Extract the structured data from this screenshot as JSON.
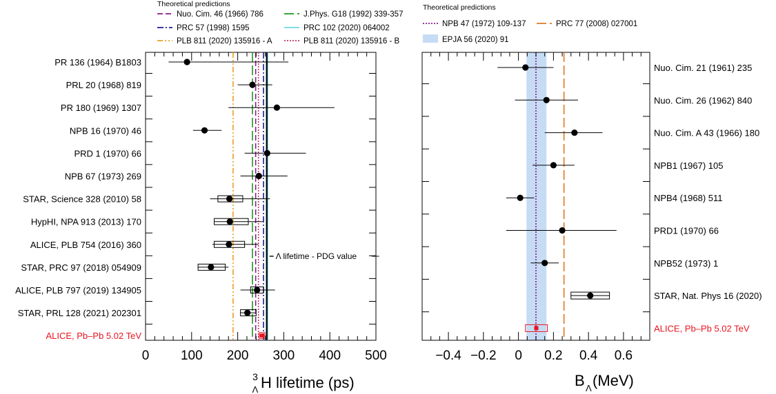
{
  "chart_data": [
    {
      "type": "scatter",
      "xlabel_main": "H lifetime (ps)",
      "xlabel_sup": "3",
      "xlabel_sub": "Λ",
      "xlim": [
        0,
        500
      ],
      "xticks": [
        "0",
        "100",
        "200",
        "300",
        "400",
        "500"
      ],
      "legend_title": "Theoretical predictions",
      "pdg_label": "Λ lifetime - PDG value",
      "pdg_value": 263,
      "theory": [
        {
          "name": "Nuo. Cim. 46 (1966) 786",
          "value": 239,
          "color": "#8b1a8b",
          "style": "dashed"
        },
        {
          "name": "J.Phys. G18 (1992) 339-357",
          "value": 232,
          "color": "#1a9a1a",
          "style": "longdash"
        },
        {
          "name": "PRC 57 (1998) 1595",
          "value": 256,
          "color": "#1a1a9a",
          "style": "dashdot"
        },
        {
          "name": "PRC 102 (2020) 064002",
          "value": 265,
          "color": "#6fd8e8",
          "style": "solid"
        },
        {
          "name": "PLB 811 (2020) 135916 - A",
          "value": 190,
          "color": "#e8a020",
          "style": "dashdotdot"
        },
        {
          "name": "PLB 811 (2020) 135916 - B",
          "value": 245,
          "color": "#c0306a",
          "style": "dotted"
        }
      ],
      "points": [
        {
          "label": "PR 136 (1964) B1803",
          "value": 90,
          "lo": 50,
          "hi": 310
        },
        {
          "label": "PRL 20 (1968) 819",
          "value": 232,
          "lo": 200,
          "hi": 275
        },
        {
          "label": "PR 180 (1969) 1307",
          "value": 285,
          "lo": 180,
          "hi": 410
        },
        {
          "label": "NPB 16 (1970) 46",
          "value": 128,
          "lo": 103,
          "hi": 165
        },
        {
          "label": "PRD 1 (1970) 66",
          "value": 264,
          "lo": 215,
          "hi": 348
        },
        {
          "label": "NPB 67 (1973) 269",
          "value": 246,
          "lo": 206,
          "hi": 308
        },
        {
          "label": "STAR, Science 328 (2010) 58",
          "value": 182,
          "lo": 140,
          "hi": 270,
          "syslo": 157,
          "syshi": 211
        },
        {
          "label": "HypHI, NPA 913 (2013) 170",
          "value": 183,
          "lo": 150,
          "hi": 255,
          "syslo": 149,
          "syshi": 223
        },
        {
          "label": "ALICE, PLB 754 (2016) 360",
          "value": 181,
          "lo": 145,
          "hi": 245,
          "syslo": 149,
          "syshi": 215
        },
        {
          "label": "STAR, PRC 97 (2018) 054909",
          "value": 142,
          "lo": 113,
          "hi": 180,
          "syslo": 114,
          "syshi": 173
        },
        {
          "label": "ALICE, PLB 797 (2019) 134905",
          "value": 242,
          "lo": 206,
          "hi": 281,
          "syslo": 228,
          "syshi": 256
        },
        {
          "label": "STAR, PRL 128 (2021) 202301",
          "value": 221,
          "lo": 205,
          "hi": 238,
          "syslo": 206,
          "syshi": 240
        },
        {
          "label": "ALICE, Pb–Pb 5.02 TeV",
          "value": 253,
          "lo": 245,
          "hi": 261,
          "syslo": 247,
          "syshi": 259,
          "highlight": true
        }
      ]
    },
    {
      "type": "scatter",
      "xlabel_main": "B",
      "xlabel_sub": "Λ",
      "xlabel_unit": " (MeV)",
      "xlim": [
        -0.55,
        0.75
      ],
      "xticks": [
        "−0.4",
        "−0.2",
        "0",
        "0.2",
        "0.4",
        "0.6"
      ],
      "xtick_values": [
        -0.4,
        -0.2,
        0,
        0.2,
        0.4,
        0.6
      ],
      "legend_title": "Theoretical predictions",
      "theory": [
        {
          "name": "NPB 47 (1972) 109-137",
          "value": 0.1,
          "color": "#8b1a8b",
          "style": "dotted"
        },
        {
          "name": "PRC 77 (2008) 027001",
          "value": 0.26,
          "color": "#e07820",
          "style": "longdash"
        }
      ],
      "band": {
        "name": "EPJA 56 (2020) 91",
        "lo": 0.046,
        "hi": 0.16,
        "color": "#c6dcf5"
      },
      "points": [
        {
          "label": "Nuo. Cim. 21 (1961) 235",
          "value": 0.04,
          "lo": -0.12,
          "hi": 0.2
        },
        {
          "label": "Nuo. Cim. 26 (1962) 840",
          "value": 0.16,
          "lo": -0.02,
          "hi": 0.34
        },
        {
          "label": "Nuo. Cim. A 43 (1966) 180",
          "value": 0.32,
          "lo": 0.15,
          "hi": 0.48
        },
        {
          "label": "NPB1 (1967) 105",
          "value": 0.2,
          "lo": 0.08,
          "hi": 0.32
        },
        {
          "label": "NPB4 (1968) 511",
          "value": 0.01,
          "lo": -0.07,
          "hi": 0.09
        },
        {
          "label": "PRD1 (1970) 66",
          "value": 0.25,
          "lo": -0.07,
          "hi": 0.56
        },
        {
          "label": "NPB52 (1973) 1",
          "value": 0.15,
          "lo": 0.07,
          "hi": 0.23
        },
        {
          "label": "STAR, Nat. Phys 16 (2020)",
          "value": 0.41,
          "lo": 0.41,
          "hi": 0.41,
          "syslo": 0.3,
          "syshi": 0.52
        },
        {
          "label": "ALICE, Pb–Pb 5.02 TeV",
          "value": 0.102,
          "lo": 0.09,
          "hi": 0.114,
          "syslo": 0.04,
          "syshi": 0.165,
          "highlight": true
        }
      ]
    }
  ]
}
